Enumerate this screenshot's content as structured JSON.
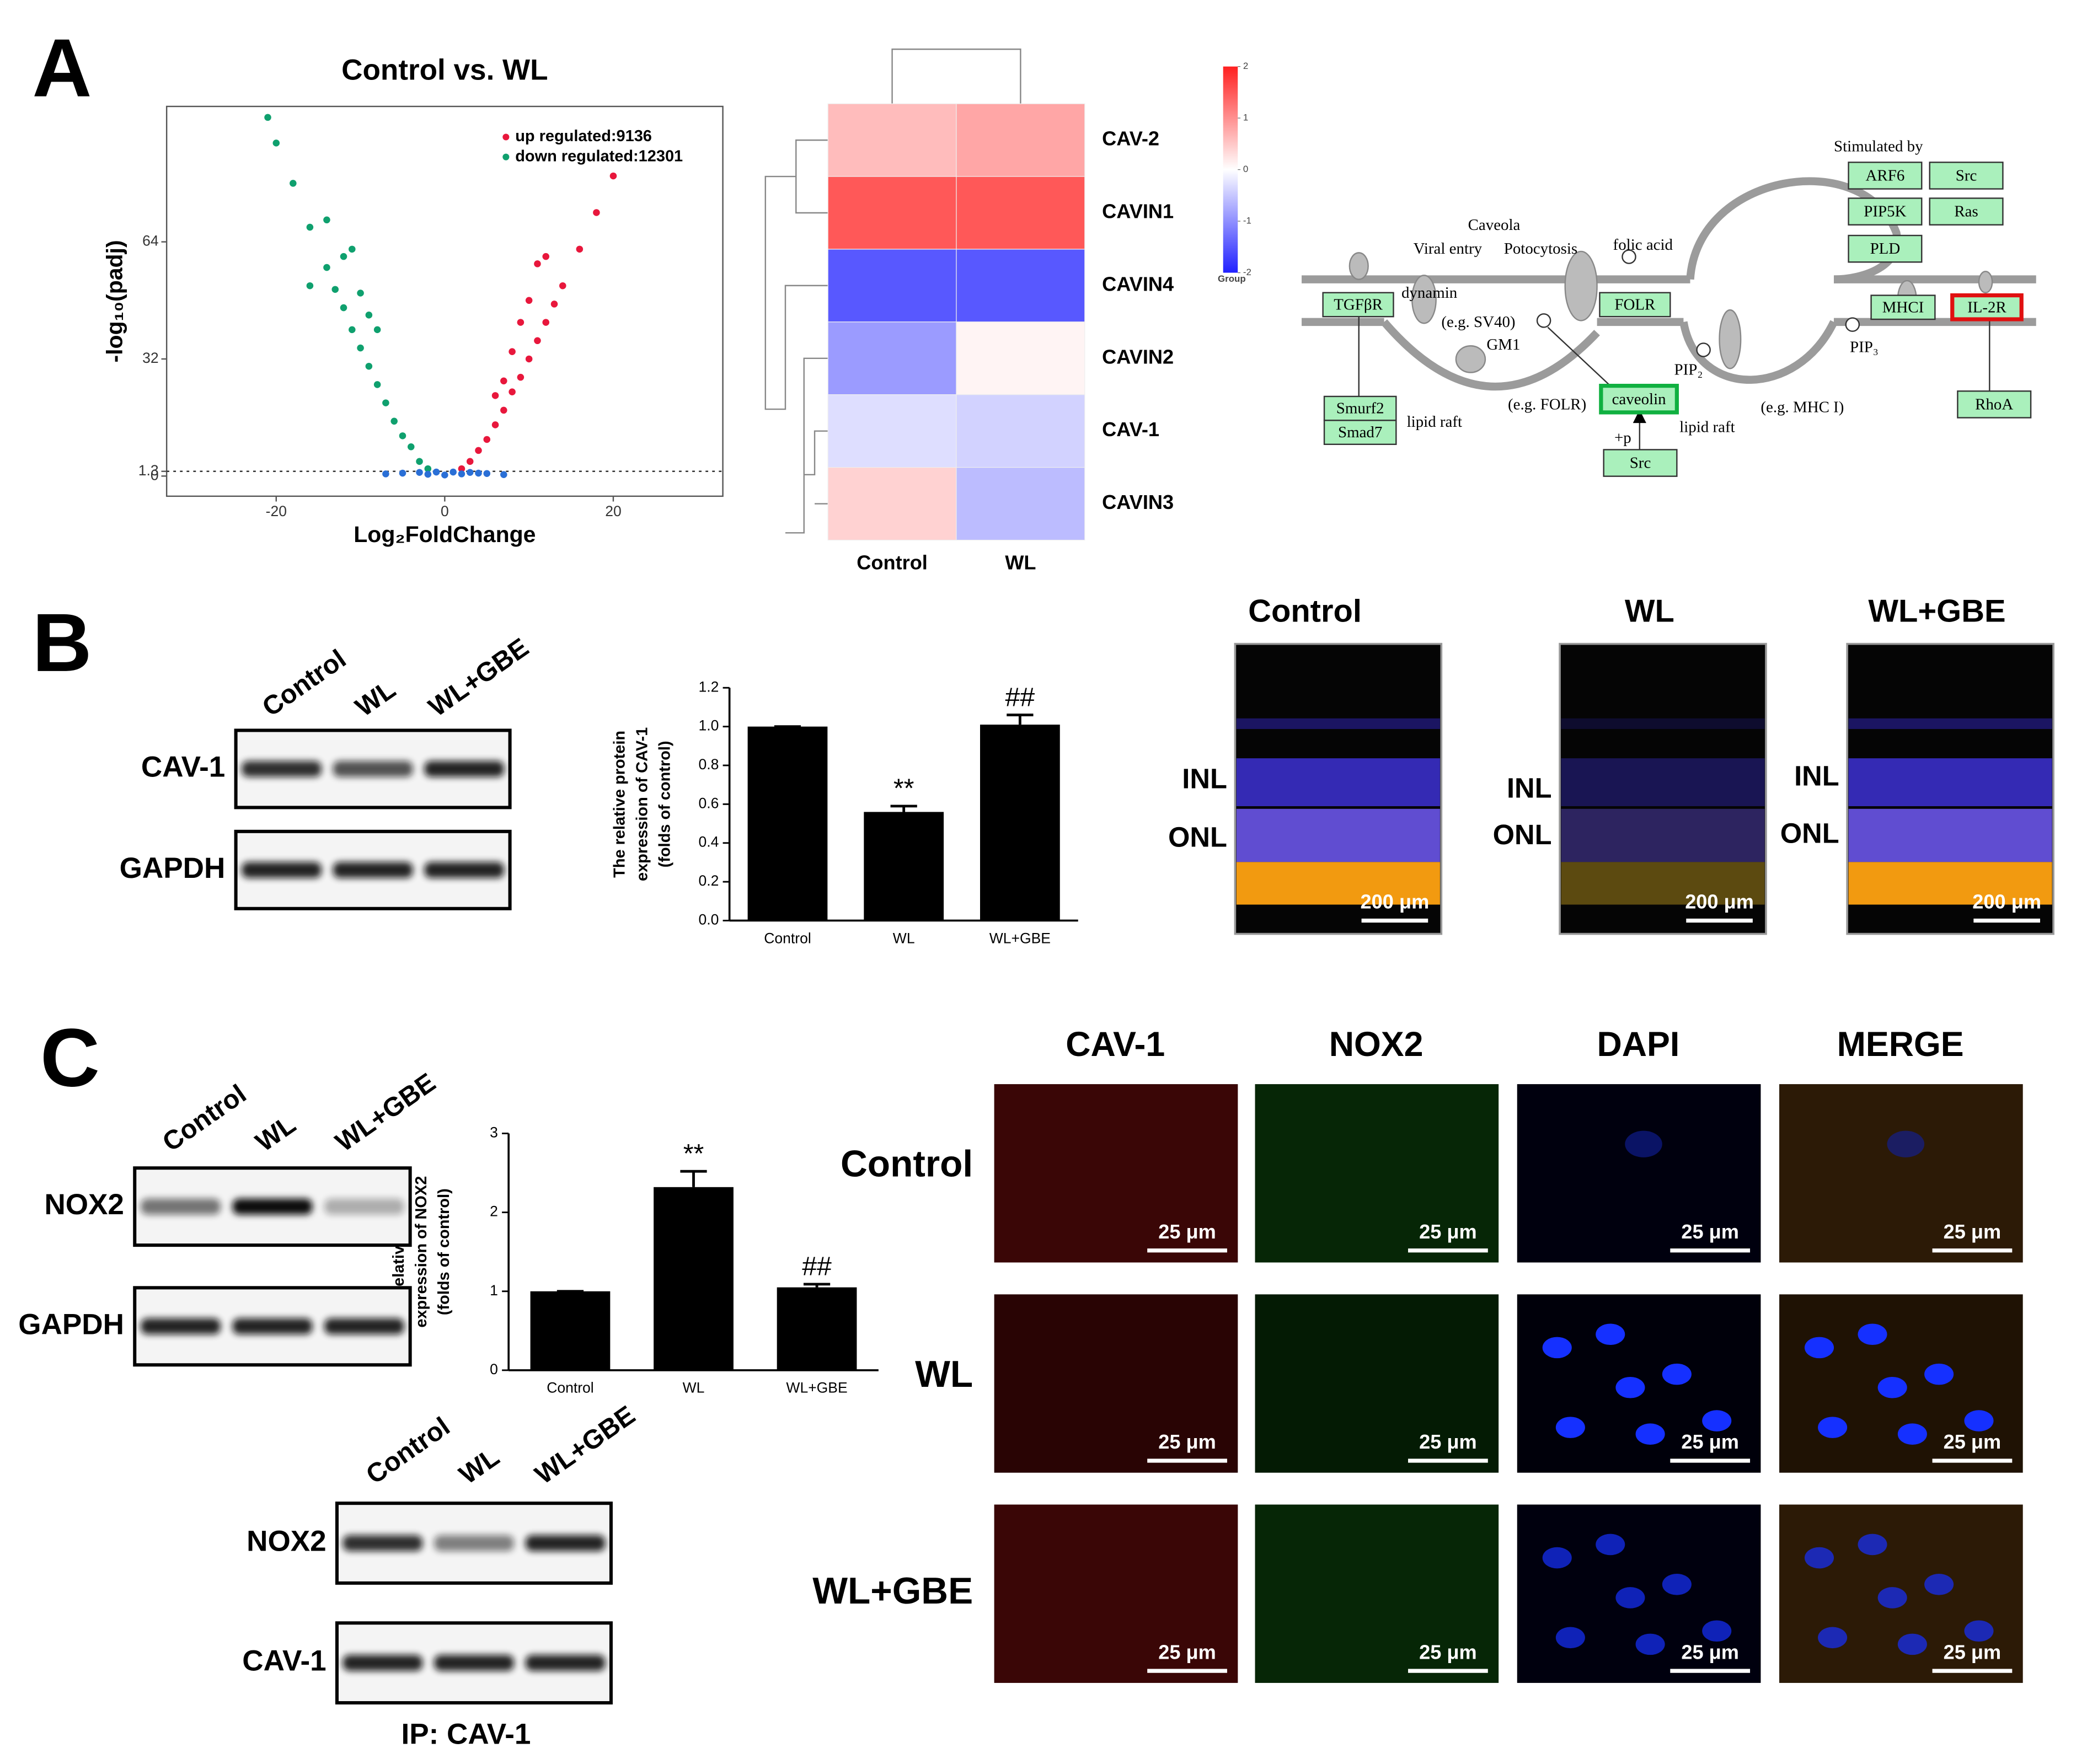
{
  "panel_labels": [
    "A",
    "B",
    "C"
  ],
  "chart_data": [
    {
      "type": "scatter",
      "title": "Control vs. WL",
      "x_label": "Log₂FoldChange",
      "y_label": "-log₁₀(padj)",
      "xlim": [
        -33,
        33
      ],
      "ylim": [
        -5.5,
        101
      ],
      "xticks": [
        -20,
        0,
        20
      ],
      "yticks": [
        0,
        1.3,
        32,
        64
      ],
      "threshold": 1.3,
      "series": [
        {
          "name": "up regulated:9136",
          "color": "#e8173c",
          "x": [
            2,
            3,
            4,
            5,
            6,
            7,
            8,
            9,
            10,
            11,
            12,
            13,
            14,
            16,
            18,
            20,
            6,
            8,
            10,
            12,
            7,
            9,
            11
          ],
          "values": [
            2,
            4,
            7,
            10,
            14,
            18,
            23,
            27,
            32,
            37,
            42,
            47,
            52,
            62,
            72,
            82,
            22,
            34,
            48,
            60,
            26,
            42,
            58
          ]
        },
        {
          "name": "down regulated:12301",
          "color": "#0fa06e",
          "x": [
            -2,
            -3,
            -4,
            -5,
            -6,
            -7,
            -8,
            -9,
            -10,
            -11,
            -12,
            -13,
            -14,
            -16,
            -18,
            -20,
            -21,
            -8,
            -10,
            -12,
            -14,
            -16,
            -9,
            -11
          ],
          "values": [
            2,
            4,
            8,
            11,
            15,
            20,
            25,
            30,
            35,
            40,
            46,
            51,
            57,
            68,
            80,
            91,
            98,
            40,
            50,
            60,
            70,
            52,
            44,
            62
          ]
        },
        {
          "color": "#2a6fd6",
          "x": [
            -7,
            -5,
            -3,
            -2,
            -1,
            0,
            1,
            2,
            3,
            4,
            5,
            7
          ],
          "values": [
            0.6,
            0.8,
            1,
            0.5,
            1.1,
            0.3,
            1.1,
            0.6,
            1,
            0.8,
            0.7,
            0.4
          ]
        }
      ]
    },
    {
      "type": "heatmap",
      "rows": [
        "CAV-2",
        "CAVIN1",
        "CAVIN4",
        "CAVIN2",
        "CAV-1",
        "CAVIN3"
      ],
      "columns": [
        "Control",
        "WL"
      ],
      "values": [
        [
          0.6,
          0.8
        ],
        [
          1.5,
          1.5
        ],
        [
          -1.5,
          -1.5
        ],
        [
          -0.9,
          0.1
        ],
        [
          -0.3,
          -0.4
        ],
        [
          0.4,
          -0.6
        ]
      ],
      "zlim": [
        -2,
        2
      ],
      "zticks": [
        2,
        1,
        0,
        -1,
        -2
      ],
      "colors": [
        "#2020ff",
        "#ffffff",
        "#ff2020"
      ],
      "legend_title": "Group"
    },
    {
      "type": "bar",
      "y_label": [
        "The relative protein",
        "expression of CAV-1",
        "(folds of control)"
      ],
      "categories": [
        "Control",
        "WL",
        "WL+GBE"
      ],
      "values": [
        1.0,
        0.56,
        1.01
      ],
      "errors": [
        0,
        0.03,
        0.05
      ],
      "significance": [
        null,
        "**",
        "##"
      ],
      "ylim": [
        0,
        1.2
      ],
      "yticks": [
        {
          "value": 0,
          "label": "0.0"
        },
        {
          "value": 0.2,
          "label": "0.2"
        },
        {
          "value": 0.4,
          "label": "0.4"
        },
        {
          "value": 0.6,
          "label": "0.6"
        },
        {
          "value": 0.8,
          "label": "0.8"
        },
        {
          "value": 1,
          "label": "1.0"
        },
        {
          "value": 1.2,
          "label": "1.2"
        }
      ],
      "color": "#000000"
    },
    {
      "type": "bar",
      "y_label": [
        "The relative protein",
        "expression of NOX2",
        "(folds of control)"
      ],
      "categories": [
        "Control",
        "WL",
        "WL+GBE"
      ],
      "values": [
        1.0,
        2.32,
        1.05
      ],
      "errors": [
        0,
        0.2,
        0.04
      ],
      "significance": [
        null,
        "**",
        "##"
      ],
      "ylim": [
        0,
        3
      ],
      "yticks": [
        0,
        1,
        2,
        3
      ],
      "color": "#000000"
    }
  ],
  "pathway": {
    "texts": [
      "Stimulated by",
      "Caveola",
      "Viral entry",
      "Potocytosis",
      "folic acid",
      "dynamin",
      "(e.g. SV40)",
      "GM1",
      "lipid raft",
      "(e.g. FOLR)",
      "+p",
      "PIP₂",
      "lipid raft",
      "(e.g. MHC I)",
      "PIP₃"
    ],
    "boxes": [
      "ARF6",
      "Src",
      "PIP5K",
      "Ras",
      "PLD",
      "TGFβR",
      "FOLR",
      "MHCI",
      "IL-2R",
      "caveolin",
      "Smurf2",
      "Smad7",
      "Src",
      "RhoA"
    ]
  },
  "blot_b": {
    "lanes": [
      "Control",
      "WL",
      "WL+GBE"
    ],
    "rows": [
      "CAV-1",
      "GAPDH"
    ]
  },
  "retina": {
    "groups": [
      "Control",
      "WL",
      "WL+GBE"
    ],
    "layers": [
      "INL",
      "ONL"
    ],
    "scale": "200 μm"
  },
  "blot_c": {
    "lanes": [
      "Control",
      "WL",
      "WL+GBE"
    ],
    "rows": [
      "NOX2",
      "GAPDH"
    ]
  },
  "ip_blot": {
    "lanes": [
      "Control",
      "WL",
      "WL+GBE"
    ],
    "rows": [
      "NOX2",
      "CAV-1"
    ],
    "caption": "IP: CAV-1"
  },
  "confocal": {
    "channels": [
      "CAV-1",
      "NOX2",
      "DAPI",
      "MERGE"
    ],
    "groups": [
      "Control",
      "WL",
      "WL+GBE"
    ],
    "scale": "25 μm"
  }
}
